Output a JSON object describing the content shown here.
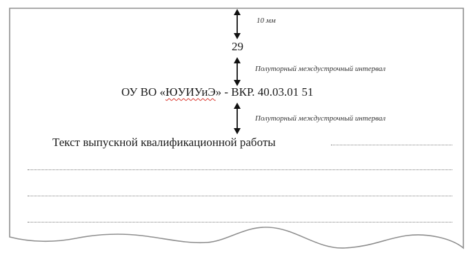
{
  "annotations": {
    "margin_top": "10 мм",
    "interval_1": "Полуторный междустрочный интервал",
    "interval_2": "Полуторный междустрочный интервал"
  },
  "page": {
    "number": "29",
    "code_prefix": "ОУ ВО «",
    "code_underlined": "ЮУИУиЭ",
    "code_suffix": "» - ВКР. 40.03.01 51",
    "body_text": "Текст выпускной квалификационной работы"
  }
}
